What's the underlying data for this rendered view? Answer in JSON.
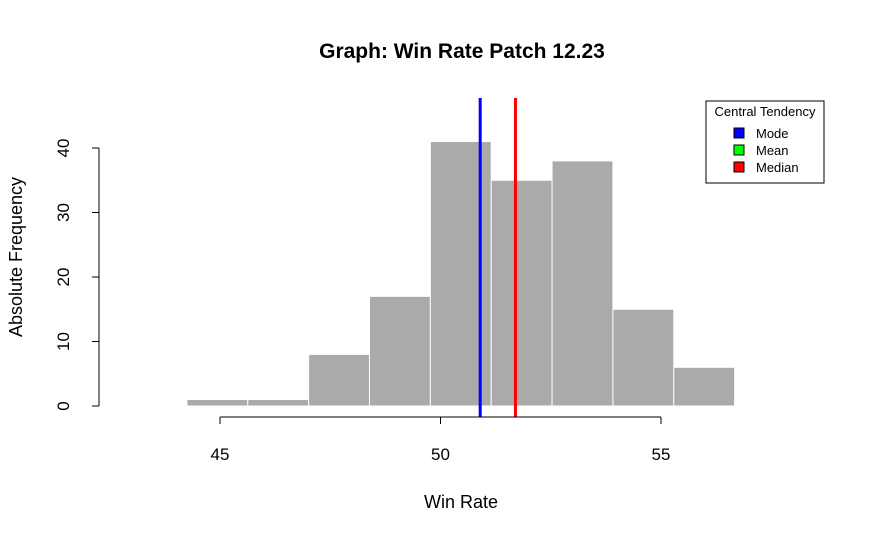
{
  "chart_data": {
    "type": "bar",
    "title": "Graph: Win Rate Patch 12.23",
    "xlabel": "Win Rate",
    "ylabel": "Absolute Frequency",
    "x_ticks": [
      45,
      50,
      55
    ],
    "y_ticks": [
      0,
      10,
      20,
      30,
      40
    ],
    "xlim": [
      42,
      60
    ],
    "ylim": [
      0,
      45
    ],
    "bar_color": "#aaaaaa",
    "bins": [
      {
        "start": 44.25,
        "end": 45.63,
        "value": 1
      },
      {
        "start": 45.63,
        "end": 47.01,
        "value": 1
      },
      {
        "start": 47.01,
        "end": 48.39,
        "value": 8
      },
      {
        "start": 48.39,
        "end": 49.77,
        "value": 17
      },
      {
        "start": 49.77,
        "end": 51.15,
        "value": 41
      },
      {
        "start": 51.15,
        "end": 52.53,
        "value": 35
      },
      {
        "start": 52.53,
        "end": 53.91,
        "value": 38
      },
      {
        "start": 53.91,
        "end": 55.29,
        "value": 15
      },
      {
        "start": 55.29,
        "end": 56.67,
        "value": 6
      }
    ],
    "reference_lines": [
      {
        "name": "Mode",
        "value": 50.9,
        "color": "#0000ff"
      },
      {
        "name": "Median",
        "value": 51.7,
        "color": "#ff0000"
      }
    ],
    "legend": {
      "title": "Central Tendency",
      "position": "top-right",
      "entries": [
        {
          "label": "Mode",
          "color": "#0000ff"
        },
        {
          "label": "Mean",
          "color": "#00ff00"
        },
        {
          "label": "Median",
          "color": "#ff0000"
        }
      ]
    },
    "grid": false
  }
}
